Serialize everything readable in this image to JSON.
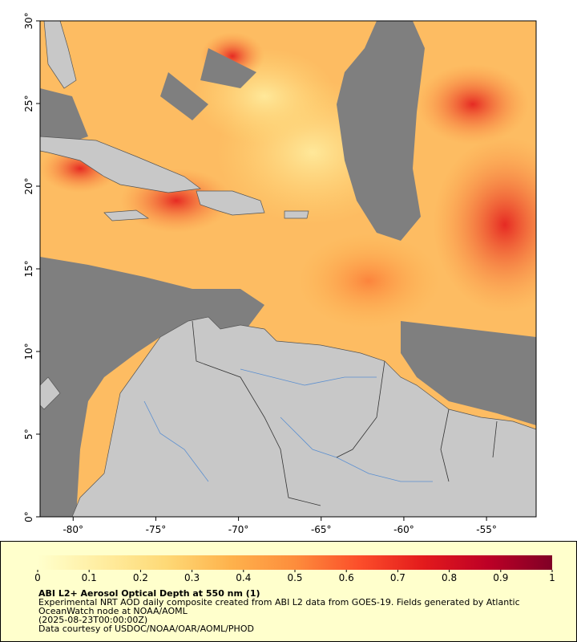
{
  "map": {
    "xlim": [
      -82,
      -52
    ],
    "ylim": [
      0,
      30
    ],
    "xticks": [
      {
        "value": -80,
        "label": "-80°"
      },
      {
        "value": -75,
        "label": "-75°"
      },
      {
        "value": -70,
        "label": "-70°"
      },
      {
        "value": -65,
        "label": "-65°"
      },
      {
        "value": -60,
        "label": "-60°"
      },
      {
        "value": -55,
        "label": "-55°"
      }
    ],
    "yticks": [
      {
        "value": 0,
        "label": "0°"
      },
      {
        "value": 5,
        "label": "5°"
      },
      {
        "value": 10,
        "label": "10°"
      },
      {
        "value": 15,
        "label": "15°"
      },
      {
        "value": 20,
        "label": "20°"
      },
      {
        "value": 25,
        "label": "25°"
      },
      {
        "value": 30,
        "label": "30°"
      }
    ]
  },
  "colorbar": {
    "lim": [
      0,
      1
    ],
    "ticks": [
      0,
      0.1,
      0.2,
      0.3,
      0.4,
      0.5,
      0.6,
      0.7,
      0.8,
      0.9,
      1
    ],
    "colors": [
      "#ffffcc",
      "#ffeda0",
      "#fed976",
      "#feb24c",
      "#fd8d3c",
      "#fc4e2a",
      "#e31a1c",
      "#bd0026",
      "#800026"
    ]
  },
  "caption": {
    "title": "ABI L2+ Aerosol Optical Depth at 550 nm (1)",
    "lines": [
      "Experimental NRT AOD daily composite created from ABI L2 data from GOES-19. Fields generated by Atlantic",
      "OceanWatch node at NOAA/AOML",
      "(2025-08-23T00:00:00Z)",
      "Data courtesy of USDOC/NOAA/OAR/AOML/PHOD"
    ]
  }
}
